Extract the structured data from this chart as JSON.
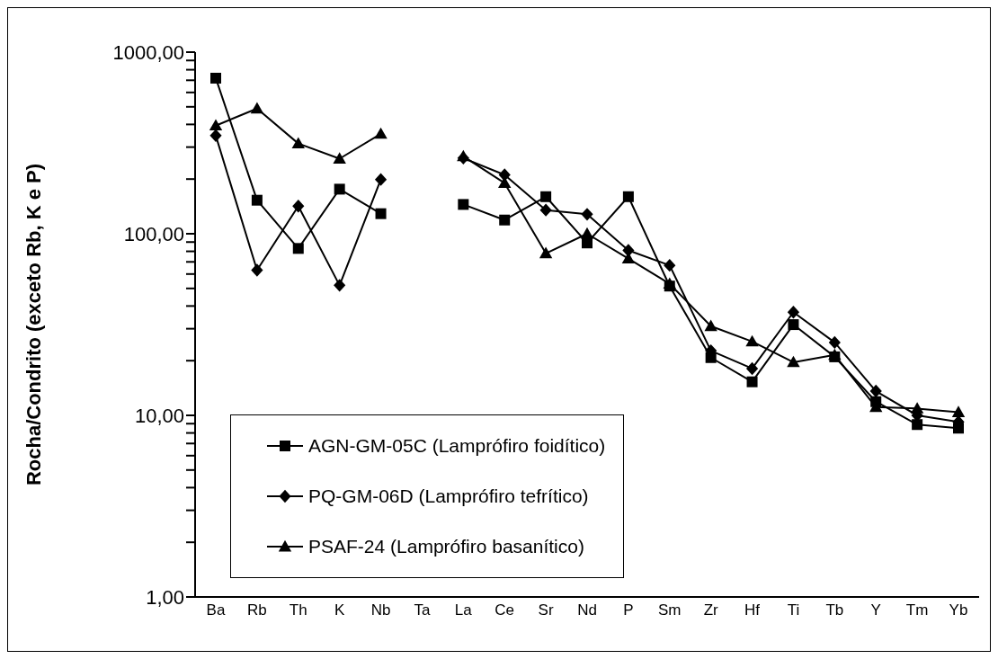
{
  "chart_data": {
    "type": "line",
    "ylabel": "Rocha/Condrito (exceto Rb, K e P)",
    "log": "y",
    "ylim": [
      1,
      1000
    ],
    "yticks": [
      {
        "value": 1,
        "label": "1,00"
      },
      {
        "value": 2,
        "label": null
      },
      {
        "value": 3,
        "label": null
      },
      {
        "value": 4,
        "label": null
      },
      {
        "value": 5,
        "label": null
      },
      {
        "value": 6,
        "label": null
      },
      {
        "value": 7,
        "label": null
      },
      {
        "value": 8,
        "label": null
      },
      {
        "value": 9,
        "label": null
      },
      {
        "value": 10,
        "label": "10,00"
      },
      {
        "value": 20,
        "label": null
      },
      {
        "value": 30,
        "label": null
      },
      {
        "value": 40,
        "label": null
      },
      {
        "value": 50,
        "label": null
      },
      {
        "value": 60,
        "label": null
      },
      {
        "value": 70,
        "label": null
      },
      {
        "value": 80,
        "label": null
      },
      {
        "value": 90,
        "label": null
      },
      {
        "value": 100,
        "label": "100,00"
      },
      {
        "value": 200,
        "label": null
      },
      {
        "value": 300,
        "label": null
      },
      {
        "value": 400,
        "label": null
      },
      {
        "value": 500,
        "label": null
      },
      {
        "value": 600,
        "label": null
      },
      {
        "value": 700,
        "label": null
      },
      {
        "value": 800,
        "label": null
      },
      {
        "value": 900,
        "label": null
      },
      {
        "value": 1000,
        "label": "1000,00"
      }
    ],
    "categories": [
      "Ba",
      "Rb",
      "Th",
      "K",
      "Nb",
      "Ta",
      "La",
      "Ce",
      "Sr",
      "Nd",
      "P",
      "Sm",
      "Zr",
      "Hf",
      "Ti",
      "Tb",
      "Y",
      "Tm",
      "Yb"
    ],
    "grid": false,
    "legend": "bottom left",
    "line_style": "solid",
    "series": [
      {
        "name": "AGN-GM-05C (Lamprófiro foidítico)",
        "color": "#000000",
        "marker": "square",
        "values": [
          719,
          153,
          83,
          176,
          129,
          null,
          145,
          119,
          160,
          89,
          160,
          51.5,
          20.8,
          15.3,
          31.6,
          21,
          11.9,
          8.9,
          8.5
        ]
      },
      {
        "name": "PQ-GM-06D (Lamprófiro tefrítico)",
        "color": "#000000",
        "marker": "diamond",
        "values": [
          347,
          63,
          142,
          52,
          199,
          null,
          261,
          211,
          135,
          128,
          81,
          67,
          22.7,
          18.1,
          37,
          25.2,
          13.6,
          10,
          9.2
        ]
      },
      {
        "name": "PSAF-24 (Lamprófiro basanítico)",
        "color": "#000000",
        "marker": "triangle",
        "values": [
          394,
          489,
          314,
          259,
          355,
          null,
          267,
          190,
          78,
          100,
          73,
          53,
          31,
          25.5,
          19.6,
          21.5,
          11.1,
          10.9,
          10.4
        ]
      }
    ]
  }
}
